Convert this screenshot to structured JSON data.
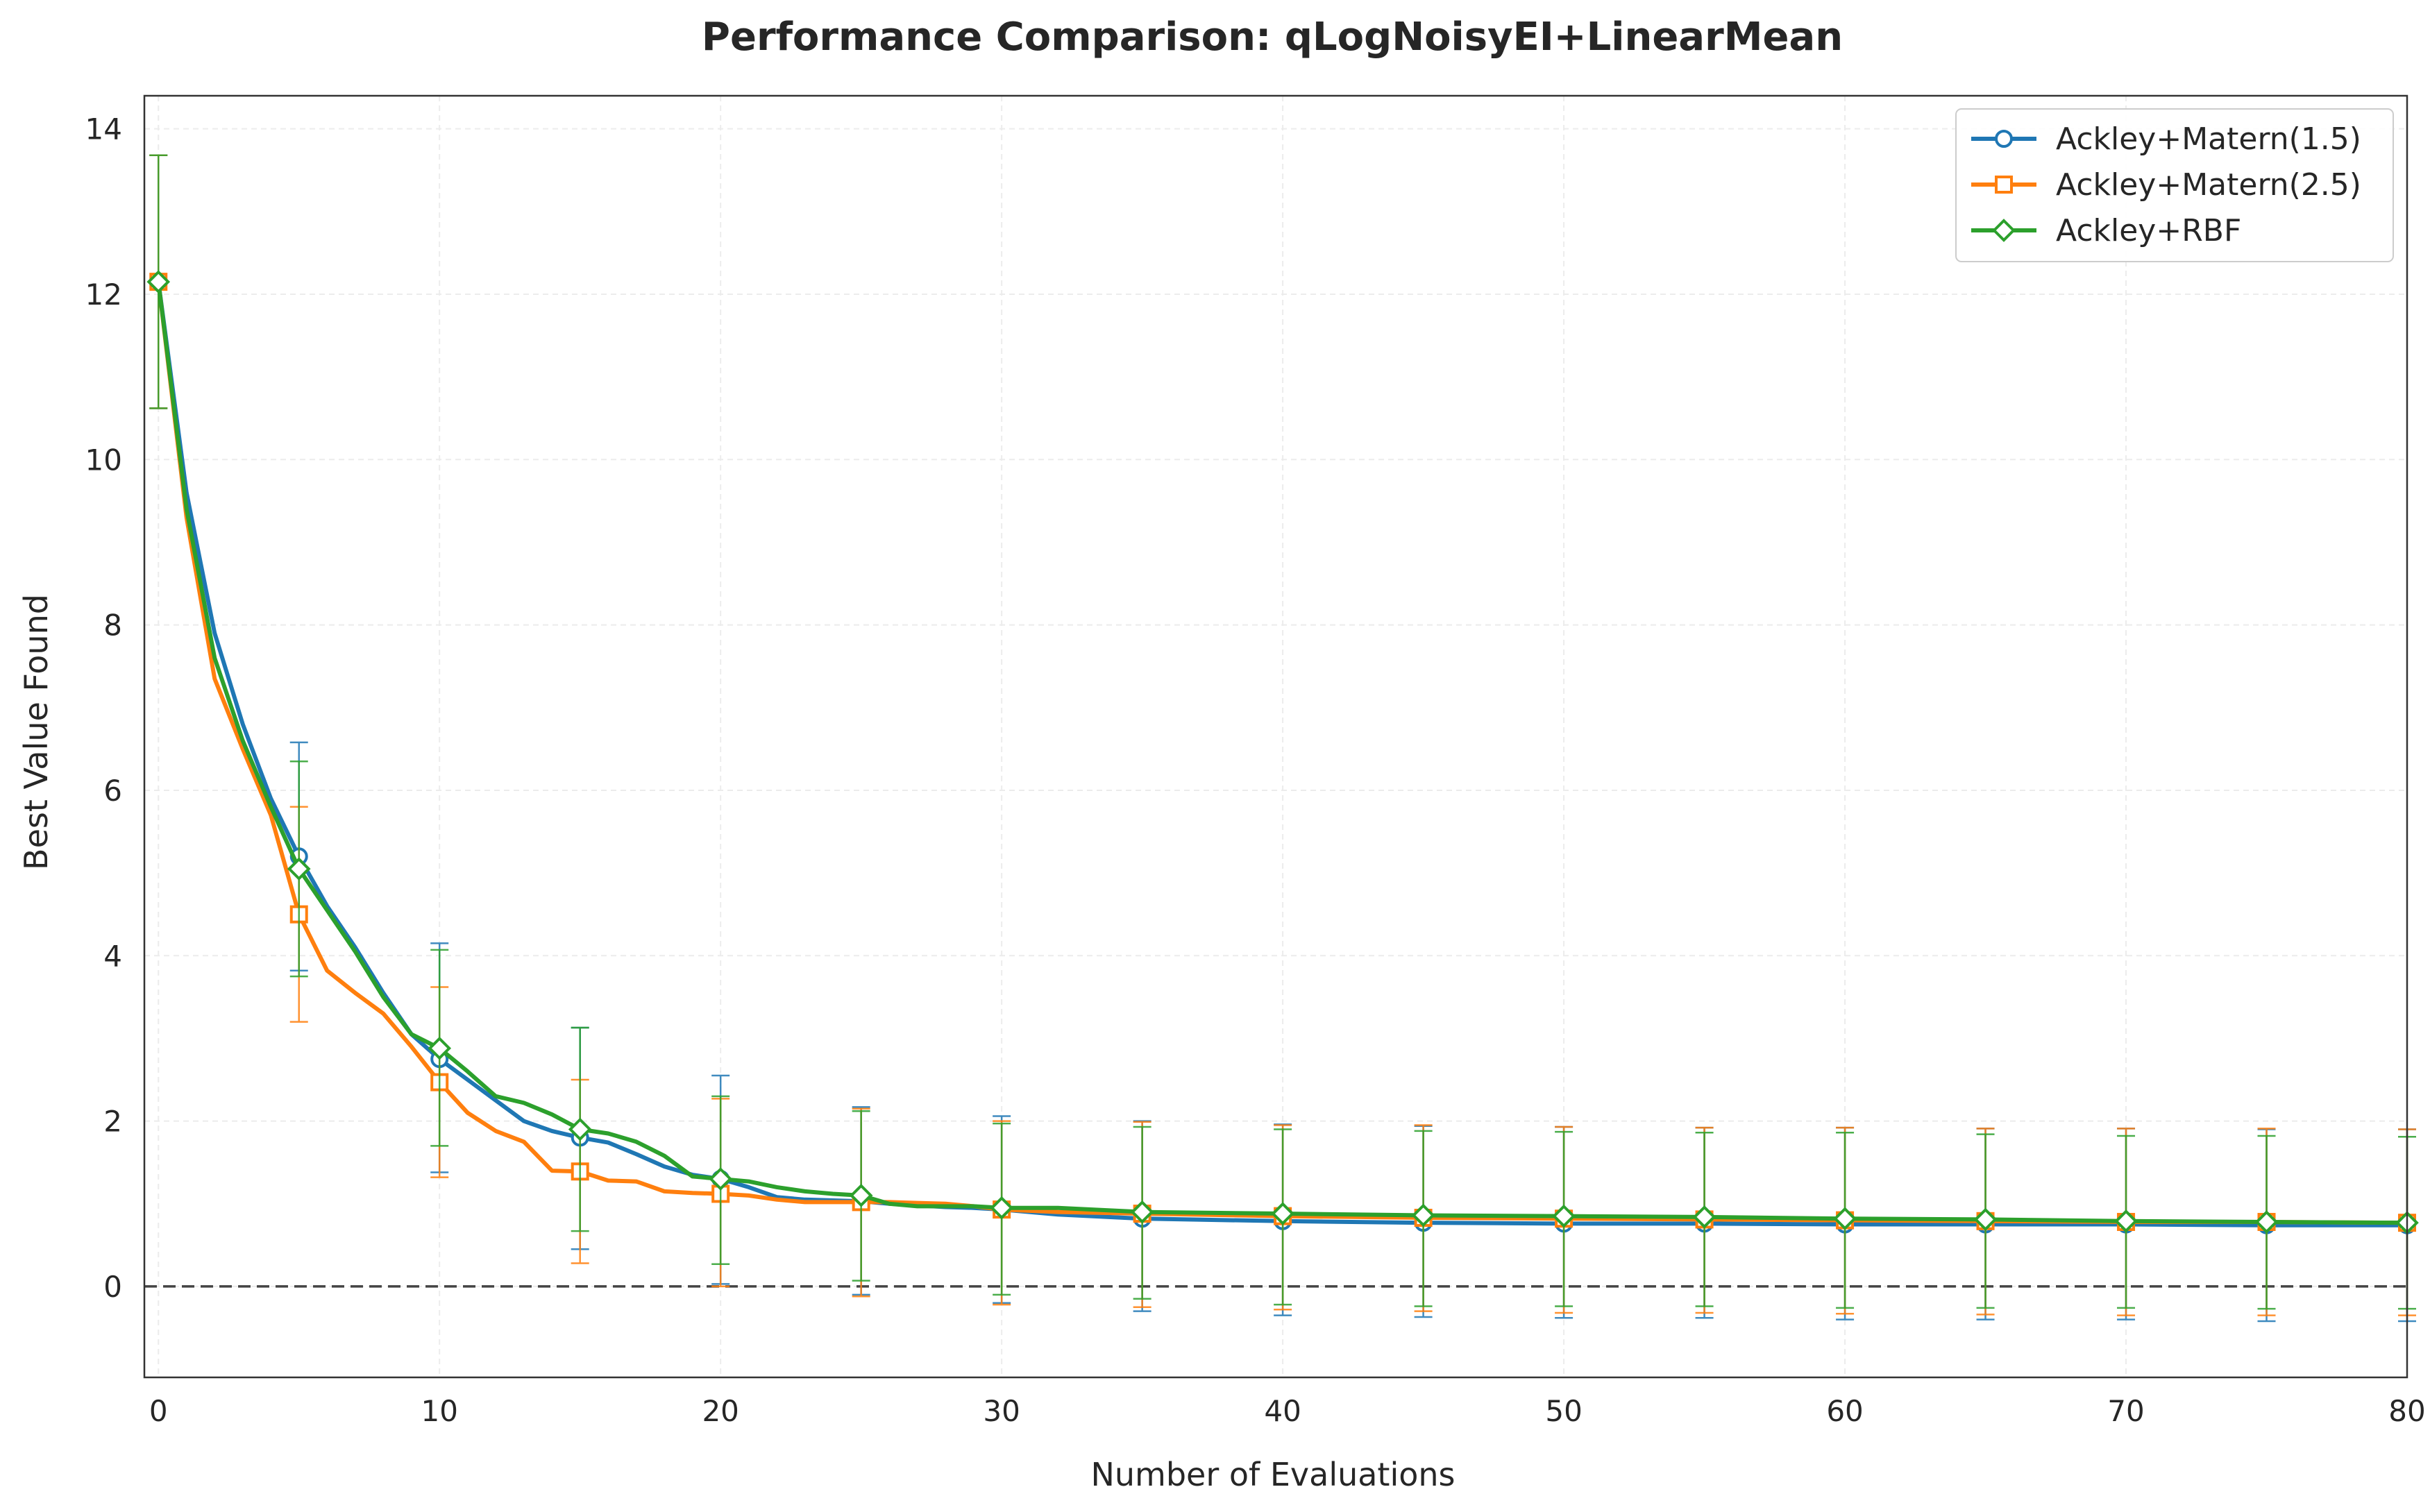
{
  "chart_data": {
    "type": "line",
    "title": "Performance Comparison: qLogNoisyEI+LinearMean",
    "xlabel": "Number of Evaluations",
    "ylabel": "Best Value Found",
    "xlim": [
      -0.5,
      80
    ],
    "ylim": [
      -1.1,
      14.4
    ],
    "xticks": [
      0,
      10,
      20,
      30,
      40,
      50,
      60,
      70,
      80
    ],
    "yticks": [
      0,
      2,
      4,
      6,
      8,
      10,
      12,
      14
    ],
    "grid": true,
    "legend_position": "top-right",
    "reference_line": {
      "y": 0,
      "style": "dashed",
      "color": "#444444"
    },
    "series": [
      {
        "name": "Ackley+Matern(1.5)",
        "color": "#1f77b4",
        "marker": "circle",
        "x": [
          0,
          1,
          2,
          3,
          4,
          5,
          6,
          7,
          8,
          9,
          10,
          11,
          12,
          13,
          14,
          15,
          16,
          17,
          18,
          19,
          20,
          21,
          22,
          23,
          24,
          25,
          26,
          27,
          28,
          29,
          30,
          32,
          35,
          40,
          45,
          50,
          55,
          60,
          65,
          70,
          75,
          80
        ],
        "y": [
          12.15,
          9.6,
          7.9,
          6.8,
          5.9,
          5.2,
          4.6,
          4.1,
          3.55,
          3.05,
          2.75,
          2.5,
          2.25,
          2.0,
          1.88,
          1.8,
          1.74,
          1.6,
          1.45,
          1.35,
          1.3,
          1.2,
          1.08,
          1.05,
          1.04,
          1.03,
          1.0,
          0.98,
          0.96,
          0.95,
          0.93,
          0.87,
          0.82,
          0.79,
          0.77,
          0.76,
          0.76,
          0.75,
          0.75,
          0.75,
          0.74,
          0.74
        ],
        "markers_at": [
          0,
          5,
          10,
          15,
          20,
          25,
          30,
          35,
          40,
          45,
          50,
          55,
          60,
          65,
          70,
          75,
          80
        ],
        "error_at": [
          0,
          5,
          10,
          15,
          20,
          25,
          30,
          35,
          40,
          45,
          50,
          55,
          60,
          65,
          70,
          75,
          80
        ],
        "error_lower": [
          10.62,
          3.82,
          1.38,
          0.45,
          0.03,
          -0.1,
          -0.2,
          -0.3,
          -0.35,
          -0.37,
          -0.38,
          -0.38,
          -0.4,
          -0.4,
          -0.4,
          -0.42,
          -0.42
        ],
        "error_upper": [
          13.68,
          6.58,
          4.15,
          3.13,
          2.55,
          2.17,
          2.06,
          2.0,
          1.96,
          1.94,
          1.93,
          1.92,
          1.92,
          1.91,
          1.91,
          1.9,
          1.9
        ]
      },
      {
        "name": "Ackley+Matern(2.5)",
        "color": "#ff7f0e",
        "marker": "square",
        "x": [
          0,
          1,
          2,
          3,
          4,
          5,
          6,
          7,
          8,
          9,
          10,
          11,
          12,
          13,
          14,
          15,
          16,
          17,
          18,
          19,
          20,
          21,
          22,
          23,
          24,
          25,
          26,
          27,
          28,
          29,
          30,
          32,
          35,
          40,
          45,
          50,
          55,
          60,
          65,
          70,
          75,
          80
        ],
        "y": [
          12.15,
          9.3,
          7.35,
          6.5,
          5.7,
          4.5,
          3.82,
          3.55,
          3.3,
          2.9,
          2.47,
          2.1,
          1.88,
          1.75,
          1.4,
          1.39,
          1.28,
          1.27,
          1.15,
          1.13,
          1.12,
          1.1,
          1.05,
          1.02,
          1.02,
          1.02,
          1.02,
          1.01,
          1.0,
          0.97,
          0.93,
          0.9,
          0.88,
          0.85,
          0.83,
          0.82,
          0.81,
          0.8,
          0.79,
          0.78,
          0.78,
          0.77
        ],
        "markers_at": [
          0,
          5,
          10,
          15,
          20,
          25,
          30,
          35,
          40,
          45,
          50,
          55,
          60,
          65,
          70,
          75,
          80
        ],
        "error_at": [
          0,
          5,
          10,
          15,
          20,
          25,
          30,
          35,
          40,
          45,
          50,
          55,
          60,
          65,
          70,
          75,
          80
        ],
        "error_lower": [
          10.62,
          3.2,
          1.32,
          0.28,
          0.0,
          -0.12,
          -0.22,
          -0.25,
          -0.28,
          -0.3,
          -0.32,
          -0.32,
          -0.33,
          -0.34,
          -0.35,
          -0.35,
          -0.35
        ],
        "error_upper": [
          13.68,
          5.8,
          3.62,
          2.5,
          2.27,
          2.15,
          2.0,
          1.99,
          1.95,
          1.95,
          1.93,
          1.92,
          1.92,
          1.91,
          1.91,
          1.91,
          1.9
        ]
      },
      {
        "name": "Ackley+RBF",
        "color": "#2ca02c",
        "marker": "diamond",
        "x": [
          0,
          1,
          2,
          3,
          4,
          5,
          6,
          7,
          8,
          9,
          10,
          11,
          12,
          13,
          14,
          15,
          16,
          17,
          18,
          19,
          20,
          21,
          22,
          23,
          24,
          25,
          26,
          27,
          28,
          29,
          30,
          32,
          35,
          40,
          45,
          50,
          55,
          60,
          65,
          70,
          75,
          80
        ],
        "y": [
          12.15,
          9.4,
          7.6,
          6.6,
          5.8,
          5.05,
          4.55,
          4.05,
          3.5,
          3.05,
          2.88,
          2.6,
          2.3,
          2.22,
          2.08,
          1.9,
          1.85,
          1.75,
          1.58,
          1.33,
          1.3,
          1.27,
          1.2,
          1.15,
          1.12,
          1.1,
          1.0,
          0.97,
          0.97,
          0.97,
          0.95,
          0.95,
          0.9,
          0.88,
          0.86,
          0.85,
          0.84,
          0.82,
          0.81,
          0.79,
          0.78,
          0.77
        ],
        "markers_at": [
          0,
          5,
          10,
          15,
          20,
          25,
          30,
          35,
          40,
          45,
          50,
          55,
          60,
          65,
          70,
          75,
          80
        ],
        "error_at": [
          0,
          5,
          10,
          15,
          20,
          25,
          30,
          35,
          40,
          45,
          50,
          55,
          60,
          65,
          70,
          75,
          80
        ],
        "error_lower": [
          10.62,
          3.75,
          1.7,
          0.67,
          0.27,
          0.07,
          -0.1,
          -0.15,
          -0.22,
          -0.24,
          -0.24,
          -0.24,
          -0.26,
          -0.26,
          -0.26,
          -0.27,
          -0.27
        ],
        "error_upper": [
          13.68,
          6.35,
          4.07,
          3.13,
          2.3,
          2.12,
          1.97,
          1.93,
          1.9,
          1.88,
          1.87,
          1.86,
          1.86,
          1.84,
          1.82,
          1.82,
          1.81
        ]
      }
    ]
  }
}
